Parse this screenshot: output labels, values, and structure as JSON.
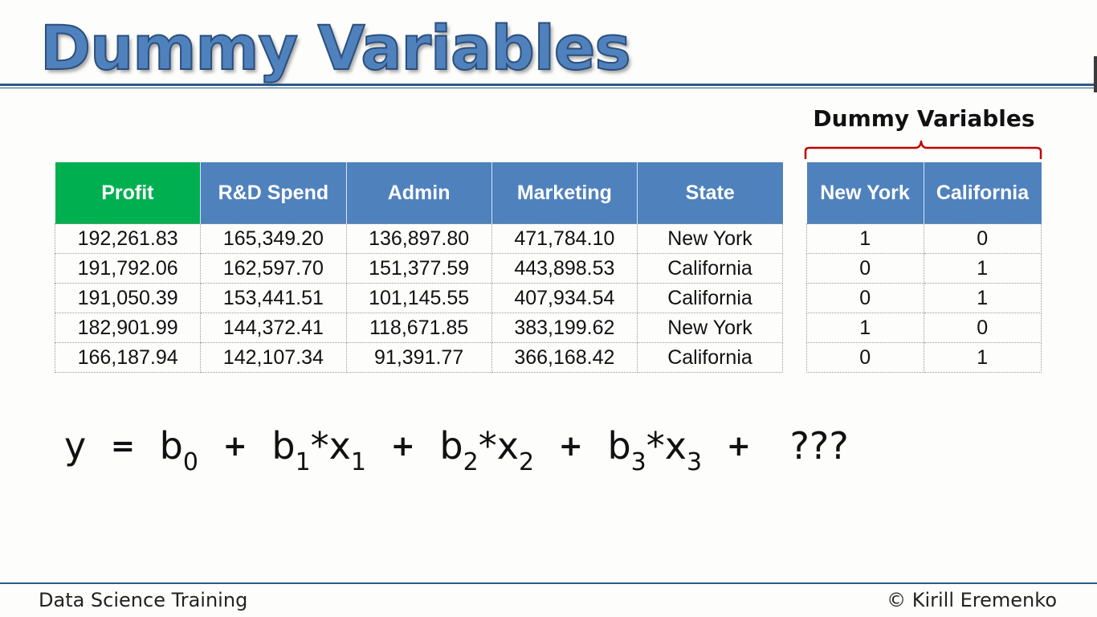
{
  "title": "Dummy Variables",
  "main_table": {
    "headers": [
      "Profit",
      "R&D Spend",
      "Admin",
      "Marketing",
      "State"
    ],
    "rows": [
      [
        "192,261.83",
        "165,349.20",
        "136,897.80",
        "471,784.10",
        "New York"
      ],
      [
        "191,792.06",
        "162,597.70",
        "151,377.59",
        "443,898.53",
        "California"
      ],
      [
        "191,050.39",
        "153,441.51",
        "101,145.55",
        "407,934.54",
        "California"
      ],
      [
        "182,901.99",
        "144,372.41",
        "118,671.85",
        "383,199.62",
        "New York"
      ],
      [
        "166,187.94",
        "142,107.34",
        "91,391.77",
        "366,168.42",
        "California"
      ]
    ]
  },
  "dummy": {
    "label": "Dummy Variables",
    "headers": [
      "New York",
      "California"
    ],
    "rows": [
      [
        "1",
        "0"
      ],
      [
        "0",
        "1"
      ],
      [
        "0",
        "1"
      ],
      [
        "1",
        "0"
      ],
      [
        "0",
        "1"
      ]
    ]
  },
  "equation": {
    "y": "y",
    "eq": "=",
    "plus": "+",
    "star": "*",
    "b": "b",
    "x": "x",
    "sub0": "0",
    "sub1": "1",
    "sub2": "2",
    "sub3": "3",
    "unknown": "???"
  },
  "footer": {
    "left": "Data Science Training",
    "right": "© Kirill Eremenko"
  },
  "colors": {
    "title": "#4f81bd",
    "header_blue": "#4f81bd",
    "header_green": "#00b050",
    "brace_red": "#c00000",
    "rule": "#2e5a8a"
  }
}
